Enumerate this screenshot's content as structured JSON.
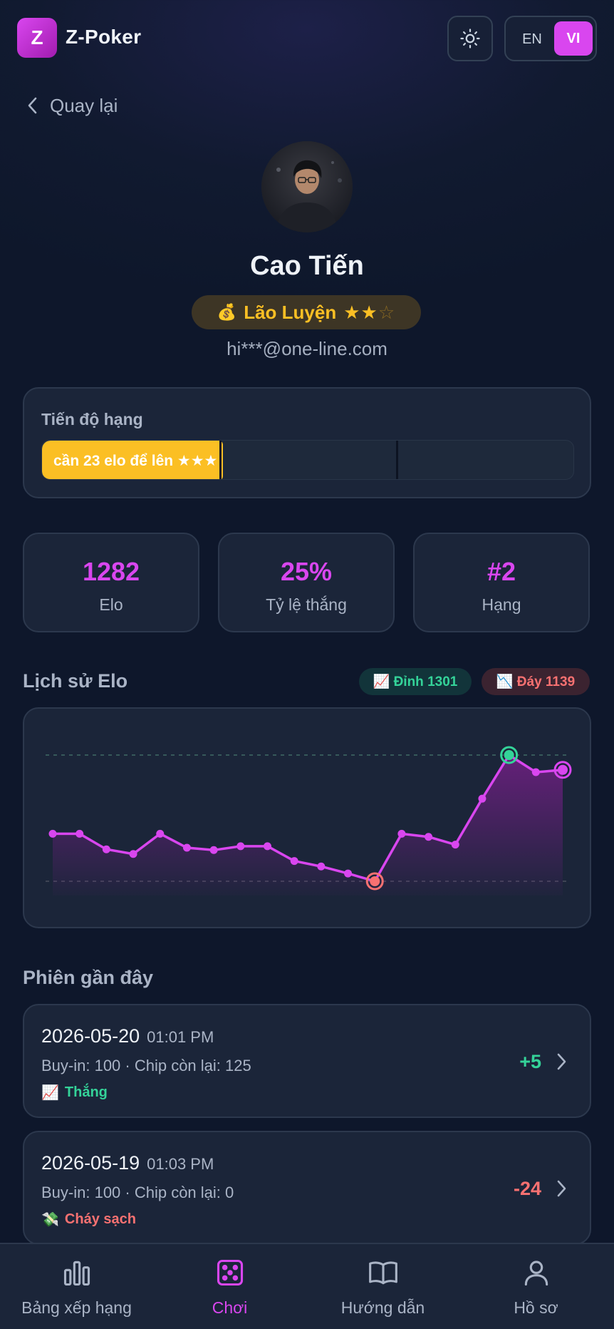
{
  "app": {
    "logo_letter": "Z",
    "brand": "Z-Poker"
  },
  "lang": {
    "en": "EN",
    "vi": "VI",
    "active": "VI"
  },
  "back": {
    "label": "Quay lại"
  },
  "profile": {
    "name": "Cao Tiến",
    "rank_label": "Lão Luyện",
    "rank_emoji": "💰",
    "stars": {
      "filled": 2,
      "total": 3,
      "filled_text": "★★",
      "empty_text": "☆"
    },
    "email": "hi***@one-line.com"
  },
  "progress": {
    "title": "Tiến độ hạng",
    "fill_label": "cần 23 elo để lên ★★★",
    "fill_fraction": 0.34
  },
  "stats": [
    {
      "value": "1282",
      "label": "Elo"
    },
    {
      "value": "25%",
      "label": "Tỷ lệ thắng"
    },
    {
      "value": "#2",
      "label": "Hạng"
    }
  ],
  "elo_history": {
    "title": "Lịch sử Elo",
    "peak_label": "📈 Đỉnh 1301",
    "low_label": "📉 Đáy 1139",
    "peak_color": "#34d399",
    "low_color": "#f87171",
    "line_color": "#d946ef"
  },
  "chart_data": {
    "type": "line",
    "title": "",
    "xlabel": "",
    "ylabel": "",
    "ylim": [
      1139,
      1301
    ],
    "grid": false,
    "series": [
      {
        "values": [
          1200,
          1200,
          1180,
          1174,
          1200,
          1182,
          1179,
          1184,
          1184,
          1165,
          1158,
          1149,
          1139,
          1200,
          1196,
          1186,
          1245,
          1301,
          1279,
          1282
        ]
      }
    ],
    "peak_index": 17,
    "low_index": 12,
    "reference_lines": [
      1301,
      1139
    ]
  },
  "sessions_section": {
    "title": "Phiên gần đây"
  },
  "sessions": [
    {
      "date": "2026-05-20",
      "time": "01:01 PM",
      "meta": "Buy-in: 100 · Chip còn lại: 125",
      "result_icon": "📈",
      "result": "Thắng",
      "delta": "+5",
      "kind": "win"
    },
    {
      "date": "2026-05-19",
      "time": "01:03 PM",
      "meta": "Buy-in: 100 · Chip còn lại: 0",
      "result_icon": "💸",
      "result": "Cháy sạch",
      "delta": "-24",
      "kind": "loss"
    }
  ],
  "nav": [
    {
      "label": "Bảng xếp hạng",
      "icon": "bar-chart-icon"
    },
    {
      "label": "Chơi",
      "icon": "dice-icon",
      "active": true
    },
    {
      "label": "Hướng dẫn",
      "icon": "book-icon"
    },
    {
      "label": "Hồ sơ",
      "icon": "user-icon"
    }
  ]
}
